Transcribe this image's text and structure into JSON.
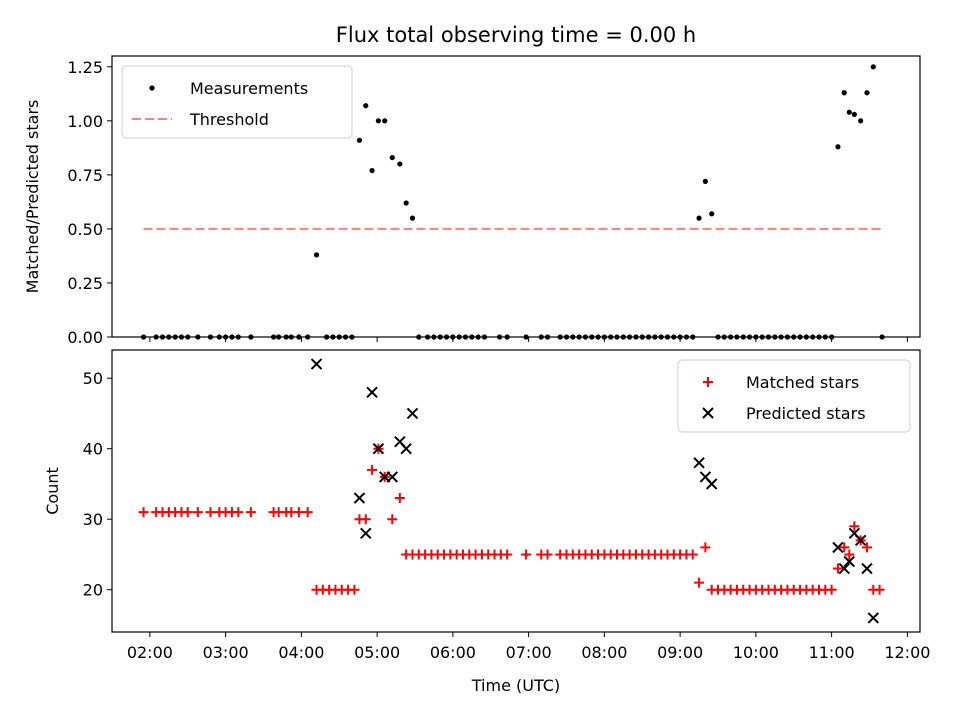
{
  "title": "Flux total observing time = 0.00 h",
  "chart_data": [
    {
      "type": "scatter",
      "ylabel": "Matched/Predicted stars",
      "xlabel": "",
      "xlim": [
        "01:30",
        "12:10"
      ],
      "ylim": [
        0,
        1.3
      ],
      "yticks": [
        "0.00",
        "0.25",
        "0.50",
        "0.75",
        "1.00",
        "1.25"
      ],
      "ytick_values": [
        0,
        0.25,
        0.5,
        0.75,
        1.0,
        1.25
      ],
      "legend_position": "upper left",
      "series": [
        {
          "name": "Measurements",
          "color": "#000000",
          "marker": "dot",
          "points": [
            [
              "01:55",
              0
            ],
            [
              "02:05",
              0
            ],
            [
              "02:10",
              0
            ],
            [
              "02:15",
              0
            ],
            [
              "02:20",
              0
            ],
            [
              "02:25",
              0
            ],
            [
              "02:30",
              0
            ],
            [
              "02:38",
              0
            ],
            [
              "02:48",
              0
            ],
            [
              "02:55",
              0
            ],
            [
              "03:00",
              0
            ],
            [
              "03:05",
              0
            ],
            [
              "03:10",
              0
            ],
            [
              "03:20",
              0
            ],
            [
              "03:38",
              0
            ],
            [
              "03:42",
              0
            ],
            [
              "03:48",
              0
            ],
            [
              "03:52",
              0
            ],
            [
              "03:58",
              0
            ],
            [
              "04:05",
              0
            ],
            [
              "04:12",
              0.38
            ],
            [
              "04:20",
              0
            ],
            [
              "04:25",
              0
            ],
            [
              "04:30",
              0
            ],
            [
              "04:35",
              0
            ],
            [
              "04:40",
              0
            ],
            [
              "04:46",
              0.91
            ],
            [
              "04:51",
              1.07
            ],
            [
              "04:56",
              0.77
            ],
            [
              "05:01",
              1.0
            ],
            [
              "05:06",
              1.0
            ],
            [
              "05:12",
              0.83
            ],
            [
              "05:18",
              0.8
            ],
            [
              "05:23",
              0.62
            ],
            [
              "05:28",
              0.55
            ],
            [
              "05:33",
              0
            ],
            [
              "05:40",
              0
            ],
            [
              "05:45",
              0
            ],
            [
              "05:50",
              0
            ],
            [
              "05:55",
              0
            ],
            [
              "06:00",
              0
            ],
            [
              "06:05",
              0
            ],
            [
              "06:10",
              0
            ],
            [
              "06:15",
              0
            ],
            [
              "06:20",
              0
            ],
            [
              "06:25",
              0
            ],
            [
              "06:37",
              0
            ],
            [
              "06:43",
              0
            ],
            [
              "06:58",
              0
            ],
            [
              "07:10",
              0
            ],
            [
              "07:15",
              0
            ],
            [
              "07:25",
              0
            ],
            [
              "07:30",
              0
            ],
            [
              "07:35",
              0
            ],
            [
              "07:40",
              0
            ],
            [
              "07:45",
              0
            ],
            [
              "07:50",
              0
            ],
            [
              "07:55",
              0
            ],
            [
              "08:00",
              0
            ],
            [
              "08:05",
              0
            ],
            [
              "08:10",
              0
            ],
            [
              "08:15",
              0
            ],
            [
              "08:20",
              0
            ],
            [
              "08:25",
              0
            ],
            [
              "08:30",
              0
            ],
            [
              "08:35",
              0
            ],
            [
              "08:40",
              0
            ],
            [
              "08:45",
              0
            ],
            [
              "08:50",
              0
            ],
            [
              "08:55",
              0
            ],
            [
              "09:00",
              0
            ],
            [
              "09:05",
              0
            ],
            [
              "09:10",
              0
            ],
            [
              "09:15",
              0.55
            ],
            [
              "09:20",
              0.72
            ],
            [
              "09:25",
              0.57
            ],
            [
              "09:30",
              0
            ],
            [
              "09:35",
              0
            ],
            [
              "09:40",
              0
            ],
            [
              "09:45",
              0
            ],
            [
              "09:50",
              0
            ],
            [
              "09:55",
              0
            ],
            [
              "10:00",
              0
            ],
            [
              "10:05",
              0
            ],
            [
              "10:10",
              0
            ],
            [
              "10:15",
              0
            ],
            [
              "10:20",
              0
            ],
            [
              "10:25",
              0
            ],
            [
              "10:30",
              0
            ],
            [
              "10:35",
              0
            ],
            [
              "10:40",
              0
            ],
            [
              "10:45",
              0
            ],
            [
              "10:50",
              0
            ],
            [
              "10:55",
              0
            ],
            [
              "11:00",
              0
            ],
            [
              "11:05",
              0.88
            ],
            [
              "11:10",
              1.13
            ],
            [
              "11:14",
              1.04
            ],
            [
              "11:18",
              1.03
            ],
            [
              "11:23",
              1.0
            ],
            [
              "11:28",
              1.13
            ],
            [
              "11:33",
              1.25
            ],
            [
              "11:40",
              0
            ]
          ]
        },
        {
          "name": "Threshold",
          "color": "#ff7f7f",
          "style": "dashed",
          "points": [
            [
              "01:55",
              0.5
            ],
            [
              "11:42",
              0.5
            ]
          ]
        }
      ]
    },
    {
      "type": "scatter",
      "ylabel": "Count",
      "xlabel": "Time (UTC)",
      "xlim": [
        "01:30",
        "12:10"
      ],
      "ylim": [
        14,
        54
      ],
      "yticks": [
        "20",
        "30",
        "40",
        "50"
      ],
      "ytick_values": [
        20,
        30,
        40,
        50
      ],
      "xticks": [
        "02:00",
        "03:00",
        "04:00",
        "05:00",
        "06:00",
        "07:00",
        "08:00",
        "09:00",
        "10:00",
        "11:00",
        "12:00"
      ],
      "legend_position": "upper right",
      "series": [
        {
          "name": "Matched stars",
          "color": "#ff0000",
          "marker": "plus",
          "points": [
            [
              "01:55",
              31
            ],
            [
              "02:05",
              31
            ],
            [
              "02:10",
              31
            ],
            [
              "02:15",
              31
            ],
            [
              "02:20",
              31
            ],
            [
              "02:25",
              31
            ],
            [
              "02:30",
              31
            ],
            [
              "02:38",
              31
            ],
            [
              "02:48",
              31
            ],
            [
              "02:55",
              31
            ],
            [
              "03:00",
              31
            ],
            [
              "03:05",
              31
            ],
            [
              "03:10",
              31
            ],
            [
              "03:20",
              31
            ],
            [
              "03:38",
              31
            ],
            [
              "03:42",
              31
            ],
            [
              "03:48",
              31
            ],
            [
              "03:52",
              31
            ],
            [
              "03:58",
              31
            ],
            [
              "04:05",
              31
            ],
            [
              "04:12",
              20
            ],
            [
              "04:17",
              20
            ],
            [
              "04:22",
              20
            ],
            [
              "04:27",
              20
            ],
            [
              "04:32",
              20
            ],
            [
              "04:37",
              20
            ],
            [
              "04:42",
              20
            ],
            [
              "04:46",
              30
            ],
            [
              "04:51",
              30
            ],
            [
              "04:56",
              37
            ],
            [
              "05:01",
              40
            ],
            [
              "05:06",
              36
            ],
            [
              "05:12",
              30
            ],
            [
              "05:18",
              33
            ],
            [
              "05:23",
              25
            ],
            [
              "05:28",
              25
            ],
            [
              "05:33",
              25
            ],
            [
              "05:38",
              25
            ],
            [
              "05:43",
              25
            ],
            [
              "05:48",
              25
            ],
            [
              "05:53",
              25
            ],
            [
              "05:58",
              25
            ],
            [
              "06:03",
              25
            ],
            [
              "06:08",
              25
            ],
            [
              "06:13",
              25
            ],
            [
              "06:18",
              25
            ],
            [
              "06:23",
              25
            ],
            [
              "06:28",
              25
            ],
            [
              "06:33",
              25
            ],
            [
              "06:38",
              25
            ],
            [
              "06:43",
              25
            ],
            [
              "06:58",
              25
            ],
            [
              "07:10",
              25
            ],
            [
              "07:15",
              25
            ],
            [
              "07:25",
              25
            ],
            [
              "07:30",
              25
            ],
            [
              "07:35",
              25
            ],
            [
              "07:40",
              25
            ],
            [
              "07:45",
              25
            ],
            [
              "07:50",
              25
            ],
            [
              "07:55",
              25
            ],
            [
              "08:00",
              25
            ],
            [
              "08:05",
              25
            ],
            [
              "08:10",
              25
            ],
            [
              "08:15",
              25
            ],
            [
              "08:20",
              25
            ],
            [
              "08:25",
              25
            ],
            [
              "08:30",
              25
            ],
            [
              "08:35",
              25
            ],
            [
              "08:40",
              25
            ],
            [
              "08:45",
              25
            ],
            [
              "08:50",
              25
            ],
            [
              "08:55",
              25
            ],
            [
              "09:00",
              25
            ],
            [
              "09:05",
              25
            ],
            [
              "09:10",
              25
            ],
            [
              "09:15",
              21
            ],
            [
              "09:20",
              26
            ],
            [
              "09:25",
              20
            ],
            [
              "09:30",
              20
            ],
            [
              "09:35",
              20
            ],
            [
              "09:40",
              20
            ],
            [
              "09:45",
              20
            ],
            [
              "09:50",
              20
            ],
            [
              "09:55",
              20
            ],
            [
              "10:00",
              20
            ],
            [
              "10:05",
              20
            ],
            [
              "10:10",
              20
            ],
            [
              "10:15",
              20
            ],
            [
              "10:20",
              20
            ],
            [
              "10:25",
              20
            ],
            [
              "10:30",
              20
            ],
            [
              "10:35",
              20
            ],
            [
              "10:40",
              20
            ],
            [
              "10:45",
              20
            ],
            [
              "10:50",
              20
            ],
            [
              "10:55",
              20
            ],
            [
              "11:00",
              20
            ],
            [
              "11:05",
              23
            ],
            [
              "11:10",
              26
            ],
            [
              "11:14",
              25
            ],
            [
              "11:18",
              29
            ],
            [
              "11:23",
              27
            ],
            [
              "11:28",
              26
            ],
            [
              "11:33",
              20
            ],
            [
              "11:38",
              20
            ]
          ]
        },
        {
          "name": "Predicted stars",
          "color": "#000000",
          "marker": "x",
          "points": [
            [
              "04:12",
              52
            ],
            [
              "04:46",
              33
            ],
            [
              "04:51",
              28
            ],
            [
              "04:56",
              48
            ],
            [
              "05:01",
              40
            ],
            [
              "05:06",
              36
            ],
            [
              "05:12",
              36
            ],
            [
              "05:18",
              41
            ],
            [
              "05:23",
              40
            ],
            [
              "05:28",
              45
            ],
            [
              "09:15",
              38
            ],
            [
              "09:20",
              36
            ],
            [
              "09:25",
              35
            ],
            [
              "11:05",
              26
            ],
            [
              "11:10",
              23
            ],
            [
              "11:14",
              24
            ],
            [
              "11:18",
              28
            ],
            [
              "11:23",
              27
            ],
            [
              "11:28",
              23
            ],
            [
              "11:33",
              16
            ]
          ]
        }
      ]
    }
  ]
}
